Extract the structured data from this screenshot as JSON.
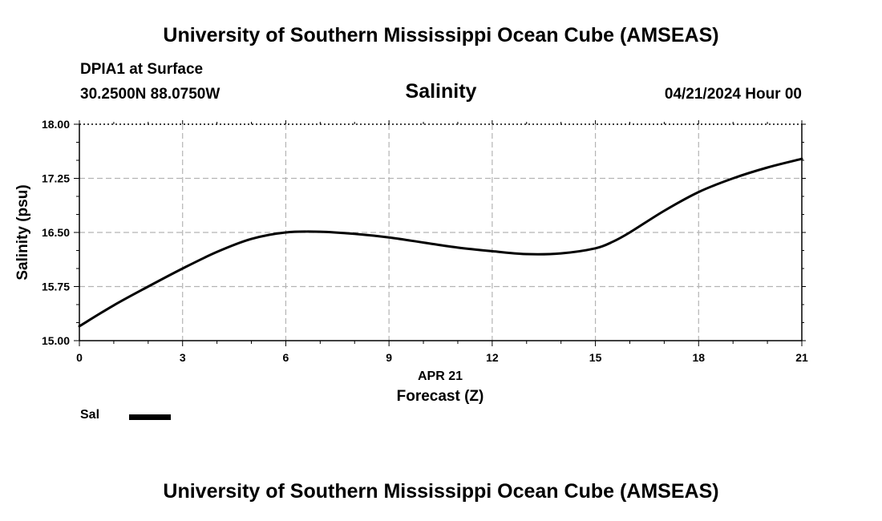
{
  "header": {
    "title": "University of Southern Mississippi Ocean Cube (AMSEAS)",
    "station": "DPIA1 at Surface",
    "location": "30.2500N  88.0750W",
    "datetime": "04/21/2024 Hour 00",
    "footer_title": "University of Southern Mississippi Ocean Cube (AMSEAS)"
  },
  "legend": {
    "label": "Sal",
    "color": "#000000"
  },
  "chart_data": {
    "type": "line",
    "title": "Salinity",
    "xlabel": "Forecast (Z)",
    "xsublabel": "APR 21",
    "ylabel": "Salinity (psu)",
    "xlim": [
      0,
      21
    ],
    "ylim": [
      15.0,
      18.0
    ],
    "xticks": [
      0,
      3,
      6,
      9,
      12,
      15,
      18,
      21
    ],
    "yticks": [
      "15.00",
      "15.75",
      "16.50",
      "17.25",
      "18.00"
    ],
    "grid": true,
    "series": [
      {
        "name": "Sal",
        "color": "#000000",
        "x": [
          0,
          1,
          2,
          3,
          4,
          5,
          6,
          7,
          8,
          9,
          10,
          11,
          12,
          13,
          14,
          15,
          15.5,
          16,
          17,
          18,
          19,
          20,
          21
        ],
        "values": [
          15.2,
          15.49,
          15.75,
          16.0,
          16.23,
          16.41,
          16.5,
          16.51,
          16.48,
          16.43,
          16.36,
          16.29,
          16.24,
          16.2,
          16.21,
          16.28,
          16.37,
          16.5,
          16.8,
          17.06,
          17.25,
          17.4,
          17.52
        ]
      }
    ]
  }
}
